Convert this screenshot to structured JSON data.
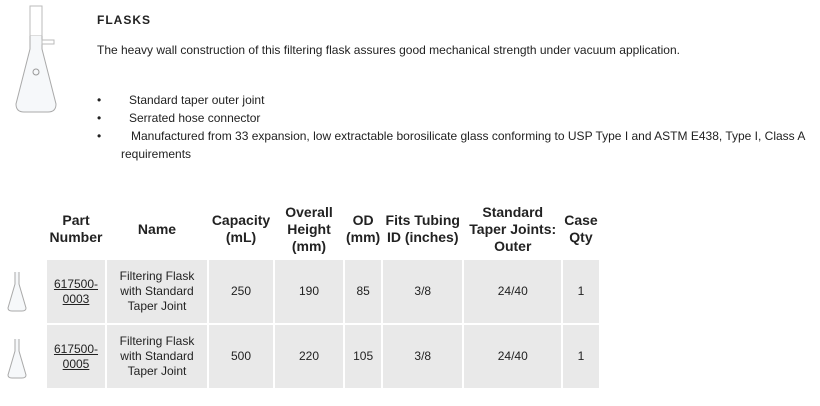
{
  "header": {
    "title": "FLASKS",
    "description": "The heavy wall construction of this filtering flask assures good mechanical strength under vacuum application."
  },
  "features": [
    "Standard taper outer joint",
    "Serrated hose connector",
    "Manufactured from 33 expansion, low extractable borosilicate glass conforming to USP Type I and ASTM E438, Type I, Class A requirements"
  ],
  "table": {
    "headers": [
      "Part Number",
      "Name",
      "Capacity (mL)",
      "Overall Height (mm)",
      "OD (mm)",
      "Fits Tubing ID (inches)",
      "Standard Taper Joints: Outer",
      "Case Qty"
    ],
    "rows": [
      [
        "617500-0003",
        "Filtering Flask with Standard Taper Joint",
        "250",
        "190",
        "85",
        "3/8",
        "24/40",
        "1"
      ],
      [
        "617500-0005",
        "Filtering Flask with Standard Taper Joint",
        "500",
        "220",
        "105",
        "3/8",
        "24/40",
        "1"
      ]
    ]
  }
}
